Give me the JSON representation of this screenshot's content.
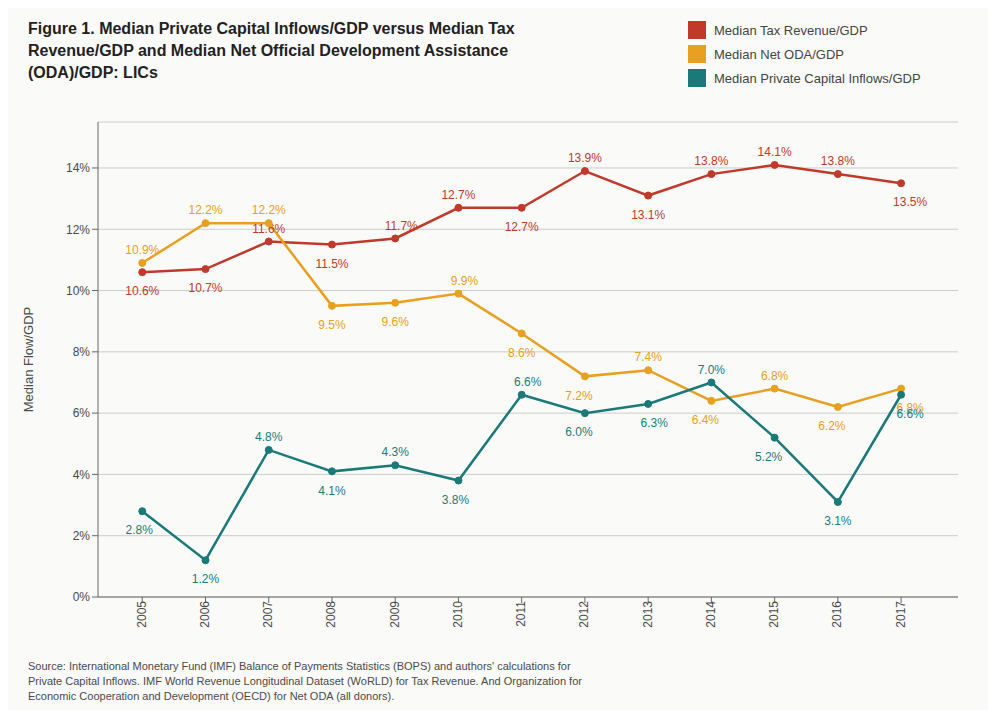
{
  "chart_data": {
    "type": "line",
    "title": "Figure 1. Median Private Capital Inflows/GDP versus Median Tax\nRevenue/GDP and Median Net Official Development Assistance\n(ODA)/GDP: LICs",
    "ylabel": "Median Flow/GDP",
    "source": "Source: International Monetary Fund (IMF) Balance of Payments Statistics (BOPS) and authors' calculations for\nPrivate Capital Inflows. IMF World Revenue Longitudinal Dataset (WoRLD) for Tax Revenue. And Organization for\nEconomic Cooperation and Development (OECD) for Net ODA (all donors).",
    "x": [
      2005,
      2006,
      2007,
      2008,
      2009,
      2010,
      2011,
      2012,
      2013,
      2014,
      2015,
      2016,
      2017
    ],
    "xlim": [
      2004.3,
      2017.9
    ],
    "xticks": [
      2005,
      2006,
      2007,
      2008,
      2009,
      2010,
      2011,
      2012,
      2013,
      2014,
      2015,
      2016,
      2017
    ],
    "ylim": [
      0,
      15.5
    ],
    "yticks": [
      {
        "value": 0,
        "label": "0%"
      },
      {
        "value": 2,
        "label": "2%"
      },
      {
        "value": 4,
        "label": "4%"
      },
      {
        "value": 6,
        "label": "6%"
      },
      {
        "value": 8,
        "label": "8%"
      },
      {
        "value": 10,
        "label": "10%"
      },
      {
        "value": 12,
        "label": "12%"
      },
      {
        "value": 14,
        "label": "14%"
      }
    ],
    "grid": true,
    "legend": "upper right",
    "data_labels": true,
    "marker": "o",
    "series": [
      {
        "name": "Median Tax Revenue/GDP",
        "color": "#C0392B",
        "values": [
          10.6,
          10.7,
          11.6,
          11.5,
          11.7,
          12.7,
          12.7,
          13.9,
          13.1,
          13.8,
          14.1,
          13.8,
          13.5
        ],
        "value_labels": [
          "10.6%",
          "10.7%",
          "11.6%",
          "11.5%",
          "11.7%",
          "12.7%",
          "12.7%",
          "13.9%",
          "13.1%",
          "13.8%",
          "14.1%",
          "13.8%",
          "13.5%"
        ]
      },
      {
        "name": "Median Net ODA/GDP",
        "color": "#E8A020",
        "values": [
          10.9,
          12.2,
          12.2,
          9.5,
          9.6,
          9.9,
          8.6,
          7.2,
          7.4,
          6.4,
          6.8,
          6.2,
          6.8
        ],
        "value_labels": [
          "10.9%",
          "12.2%",
          "12.2%",
          "9.5%",
          "9.6%",
          "9.9%",
          "8.6%",
          "7.2%",
          "7.4%",
          "6.4%",
          "6.8%",
          "6.2%",
          "6.8%"
        ]
      },
      {
        "name": "Median Private Capital Inflows/GDP",
        "color": "#1A7A7A",
        "values": [
          2.8,
          1.2,
          4.8,
          4.1,
          4.3,
          3.8,
          6.6,
          6.0,
          6.3,
          7.0,
          5.2,
          3.1,
          6.6
        ],
        "value_labels": [
          "2.8%",
          "1.2%",
          "4.8%",
          "4.1%",
          "4.3%",
          "3.8%",
          "6.6%",
          "6.0%",
          "6.3%",
          "7.0%",
          "5.2%",
          "3.1%",
          "6.6%"
        ]
      }
    ]
  }
}
